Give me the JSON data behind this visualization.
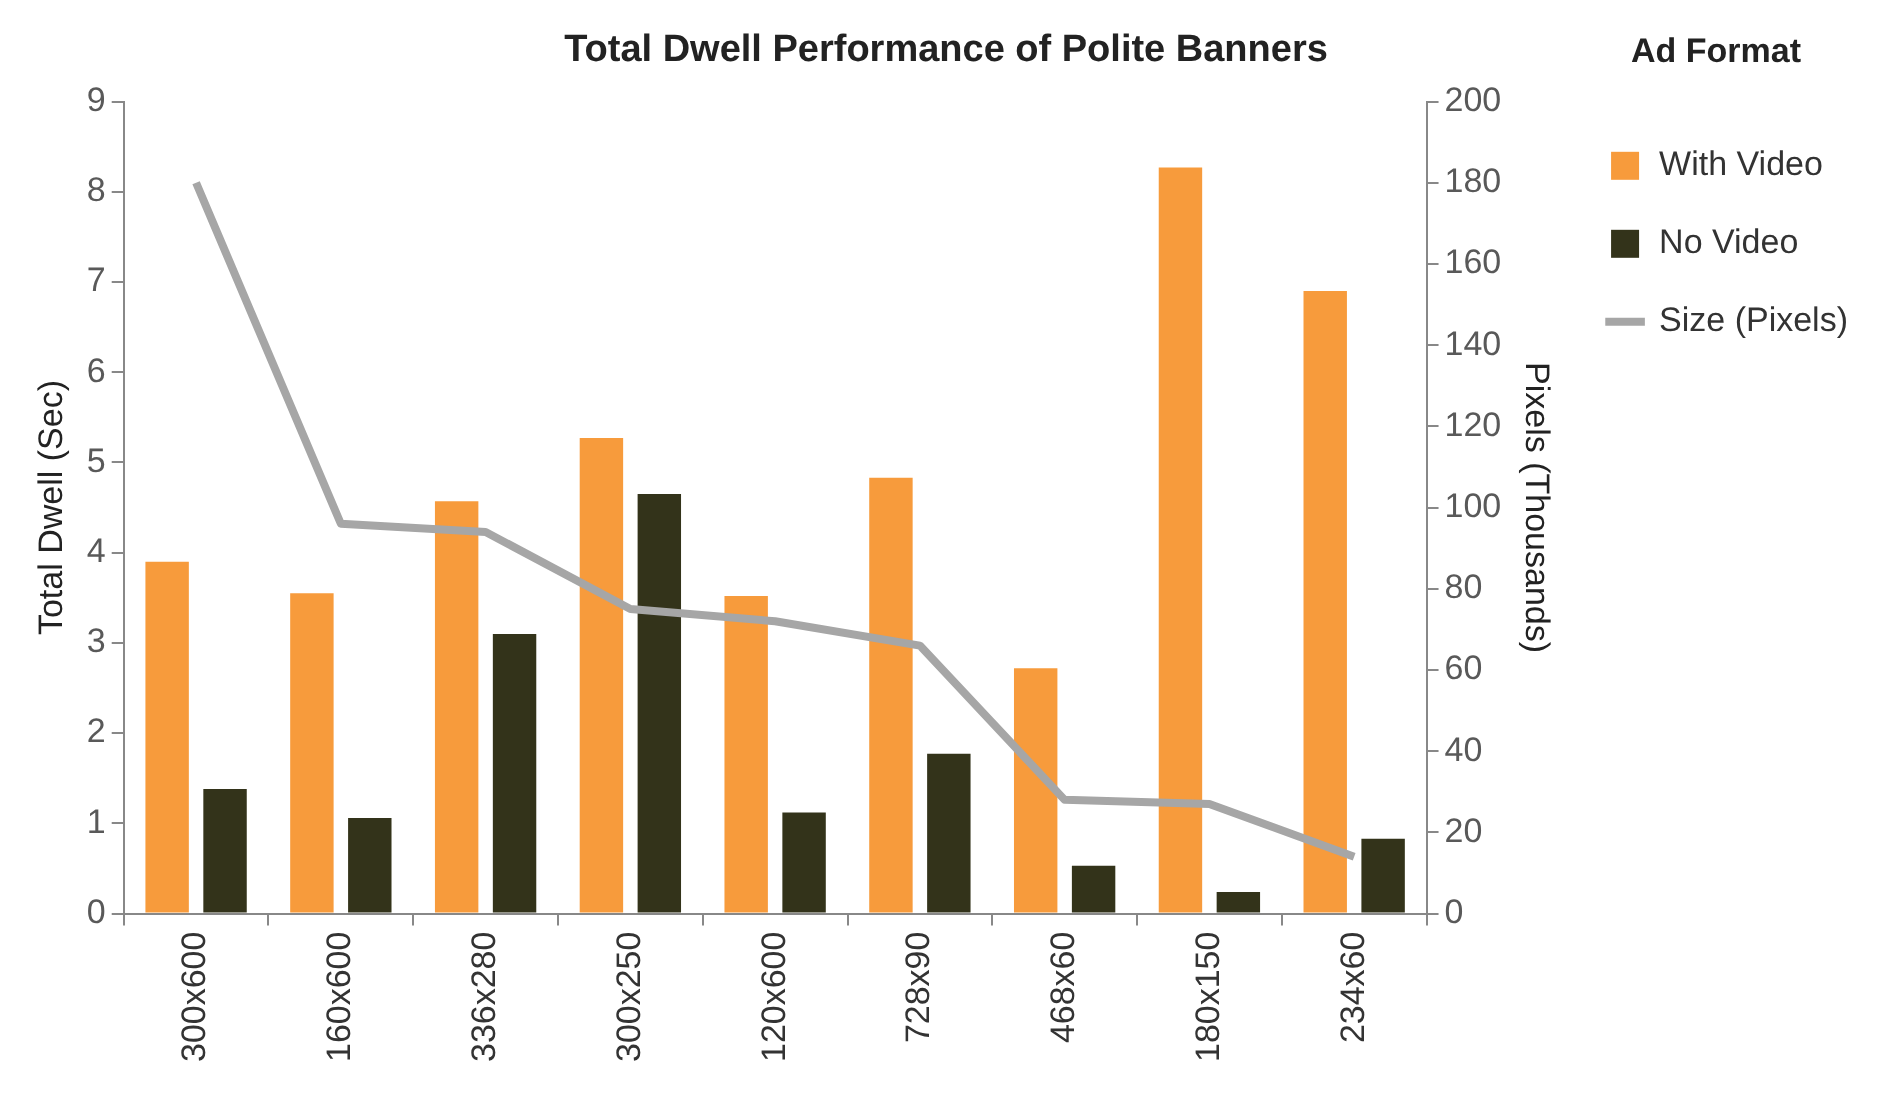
{
  "chart_data": {
    "type": "bar",
    "title": "Total Dwell Performance of Polite Banners",
    "ylabel": "Total Dwell (Sec)",
    "y2label": "Pixels (Thousands)",
    "legend_title": "Ad Format",
    "categories": [
      "300x600",
      "160x600",
      "336x280",
      "300x250",
      "120x600",
      "728x90",
      "468x60",
      "180x150",
      "234x60"
    ],
    "series": [
      {
        "name": "With Video",
        "color": "#f79b3c",
        "values": [
          3.9,
          3.55,
          4.57,
          5.27,
          3.52,
          4.83,
          2.72,
          8.27,
          6.9
        ]
      },
      {
        "name": "No Video",
        "color": "#33331a",
        "values": [
          1.38,
          1.06,
          3.1,
          4.65,
          1.12,
          1.77,
          0.53,
          0.24,
          0.83
        ]
      },
      {
        "name": "Size (Pixels)",
        "type": "line",
        "axis": "y2",
        "color": "#a6a6a6",
        "marker": "none",
        "line_style": "solid",
        "values": [
          180,
          96,
          94,
          75,
          72,
          66,
          28,
          27,
          14
        ]
      }
    ],
    "ylim": [
      0,
      9
    ],
    "yticks": [
      0,
      1,
      2,
      3,
      4,
      5,
      6,
      7,
      8,
      9
    ],
    "y2lim": [
      0,
      200
    ],
    "y2ticks": [
      0,
      20,
      40,
      60,
      80,
      100,
      120,
      140,
      160,
      180,
      200
    ],
    "grid": false,
    "legend": "right"
  }
}
